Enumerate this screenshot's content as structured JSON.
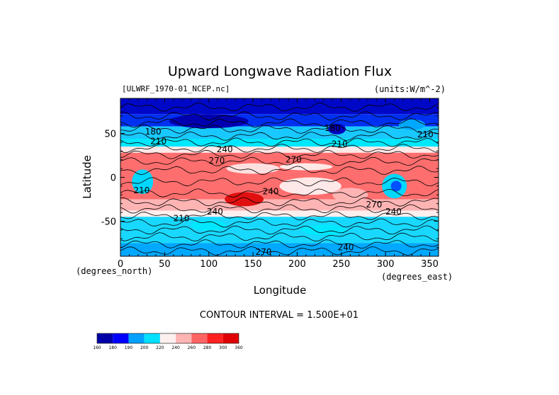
{
  "chart_data": {
    "type": "heatmap",
    "title": "Upward Longwave Radiation Flux",
    "subtitle_left": "[ULWRF_1970-01_NCEP.nc]",
    "subtitle_right": "(units:W/m^-2)",
    "xlabel": "Longitude",
    "ylabel": "Latitude",
    "x_unit_label": "(degrees_east)",
    "y_unit_label": "(degrees_north)",
    "xlim": [
      0,
      360
    ],
    "ylim": [
      -90,
      90
    ],
    "x_ticks": [
      0,
      50,
      100,
      150,
      200,
      250,
      300,
      350
    ],
    "y_ticks": [
      50,
      0,
      -50
    ],
    "contour_interval_text": "CONTOUR INTERVAL = 1.500E+01",
    "contour_labels": [
      {
        "text": "180",
        "lon": 37,
        "lat": 52
      },
      {
        "text": "210",
        "lon": 43,
        "lat": 41
      },
      {
        "text": "180",
        "lon": 240,
        "lat": 56
      },
      {
        "text": "210",
        "lon": 248,
        "lat": 38
      },
      {
        "text": "210",
        "lon": 345,
        "lat": 49
      },
      {
        "text": "240",
        "lon": 118,
        "lat": 32
      },
      {
        "text": "270",
        "lon": 109,
        "lat": 19
      },
      {
        "text": "270",
        "lon": 196,
        "lat": 20
      },
      {
        "text": "210",
        "lon": 24,
        "lat": -15
      },
      {
        "text": "240",
        "lon": 170,
        "lat": -16
      },
      {
        "text": "240",
        "lon": 107,
        "lat": -39
      },
      {
        "text": "210",
        "lon": 69,
        "lat": -47
      },
      {
        "text": "270",
        "lon": 287,
        "lat": -31
      },
      {
        "text": "240",
        "lon": 309,
        "lat": -39
      },
      {
        "text": "270",
        "lon": 162,
        "lat": -85
      },
      {
        "text": "240",
        "lon": 255,
        "lat": -80
      }
    ],
    "colorbar": {
      "levels": [
        160,
        180,
        190,
        200,
        220,
        240,
        260,
        280,
        300,
        360
      ],
      "colors": [
        "#0000a8",
        "#0000ff",
        "#00a0ff",
        "#00e0ff",
        "#fff0f0",
        "#ffb4b4",
        "#ff6464",
        "#ff2020",
        "#e00000"
      ]
    },
    "field_bands": [
      {
        "lat_min": 72,
        "lat_max": 90,
        "color": "#0008c8"
      },
      {
        "lat_min": 58,
        "lat_max": 72,
        "color": "#0030f0"
      },
      {
        "lat_min": 44,
        "lat_max": 58,
        "color": "#19c8ff"
      },
      {
        "lat_min": 35,
        "lat_max": 44,
        "color": "#00e8ff"
      },
      {
        "lat_min": 28,
        "lat_max": 35,
        "color": "#ffe8e8"
      },
      {
        "lat_min": -25,
        "lat_max": 28,
        "color": "#ff6e6e"
      },
      {
        "lat_min": -38,
        "lat_max": -25,
        "color": "#ffb4b4"
      },
      {
        "lat_min": -45,
        "lat_max": -38,
        "color": "#ffeeee"
      },
      {
        "lat_min": -75,
        "lat_max": -45,
        "color": "#19d8ff"
      },
      {
        "lat_min": -90,
        "lat_max": -75,
        "color": "#00a8ff"
      }
    ],
    "field_patches": [
      {
        "lon": 100,
        "lat": 64,
        "rlon": 45,
        "rlat": 8,
        "color": "#0000b0"
      },
      {
        "lon": 245,
        "lat": 55,
        "rlon": 10,
        "rlat": 6,
        "color": "#0000c0"
      },
      {
        "lon": 330,
        "lat": 60,
        "rlon": 15,
        "rlat": 6,
        "color": "#00a8ff"
      },
      {
        "lon": 25,
        "lat": -5,
        "rlon": 12,
        "rlat": 14,
        "color": "#00d8ff"
      },
      {
        "lon": 310,
        "lat": -10,
        "rlon": 14,
        "rlat": 14,
        "color": "#00d8ff"
      },
      {
        "lon": 312,
        "lat": -10,
        "rlon": 6,
        "rlat": 6,
        "color": "#0050ff"
      },
      {
        "lon": 140,
        "lat": -25,
        "rlon": 22,
        "rlat": 8,
        "color": "#e01010"
      },
      {
        "lon": 150,
        "lat": 10,
        "rlon": 30,
        "rlat": 6,
        "color": "#ffe0e0"
      },
      {
        "lon": 215,
        "lat": -10,
        "rlon": 35,
        "rlat": 10,
        "color": "#ffe8e8"
      },
      {
        "lon": 260,
        "lat": -20,
        "rlon": 20,
        "rlat": 8,
        "color": "#ffb4b4"
      },
      {
        "lon": 210,
        "lat": 12,
        "rlon": 30,
        "rlat": 4,
        "color": "#ffe8e8"
      },
      {
        "lon": 100,
        "lat": -55,
        "rlon": 20,
        "rlat": 6,
        "color": "#00e8ff"
      },
      {
        "lon": 230,
        "lat": -60,
        "rlon": 25,
        "rlat": 6,
        "color": "#00e8ff"
      }
    ]
  }
}
